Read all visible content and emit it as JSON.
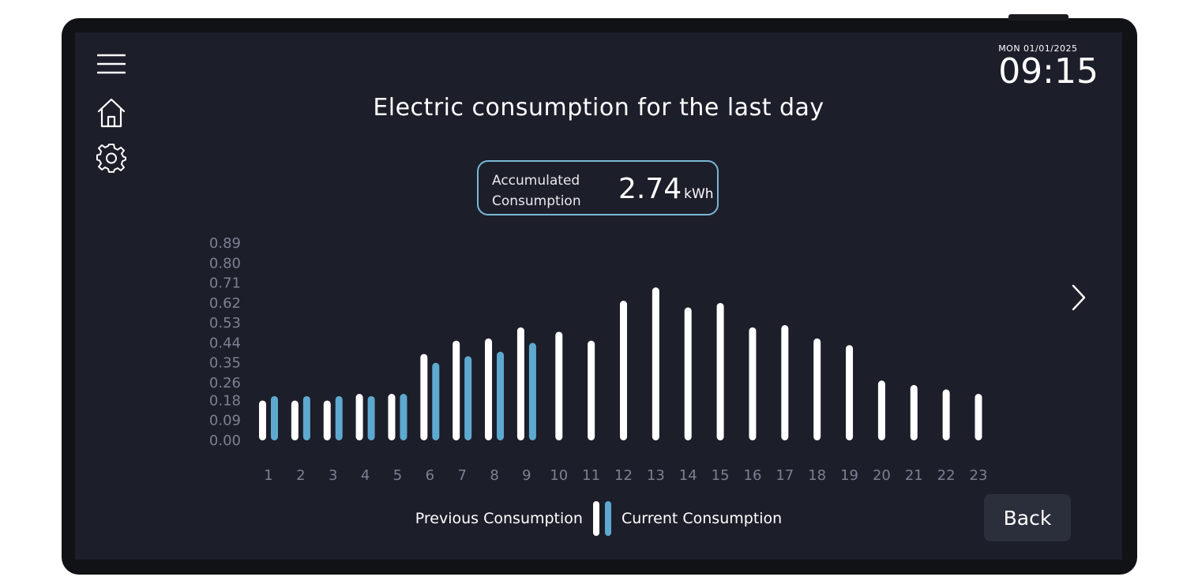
{
  "header": {
    "date": "MON 01/01/2025",
    "time": "09:15",
    "title": "Electric consumption for the last day"
  },
  "nav": {
    "menu_icon": "hamburger-menu-icon",
    "home_icon": "home-icon",
    "settings_icon": "gear-icon",
    "next_icon": "chevron-right-icon"
  },
  "summary": {
    "label": "Accumulated Consumption",
    "value": "2.74",
    "unit": "kWh"
  },
  "colors": {
    "background": "#1c1e2a",
    "previous": "#ffffff",
    "current": "#5ea9cf",
    "accent_border": "#7ab8d4"
  },
  "chart_data": {
    "type": "bar",
    "title": "Electric consumption for the last day",
    "xlabel": "",
    "ylabel": "",
    "ylim": [
      0,
      0.89
    ],
    "yticks": [
      "0.00",
      "0.09",
      "0.18",
      "0.26",
      "0.35",
      "0.44",
      "0.53",
      "0.62",
      "0.71",
      "0.80",
      "0.89"
    ],
    "categories": [
      "1",
      "2",
      "3",
      "4",
      "5",
      "6",
      "7",
      "8",
      "9",
      "10",
      "11",
      "12",
      "13",
      "14",
      "15",
      "16",
      "17",
      "18",
      "19",
      "20",
      "21",
      "22",
      "23"
    ],
    "series": [
      {
        "name": "Previous Consumption",
        "color": "#ffffff",
        "values": [
          0.18,
          0.18,
          0.18,
          0.21,
          0.21,
          0.39,
          0.45,
          0.46,
          0.51,
          0.49,
          0.45,
          0.63,
          0.69,
          0.6,
          0.62,
          0.51,
          0.52,
          0.46,
          0.43,
          0.27,
          0.25,
          0.23,
          0.21
        ]
      },
      {
        "name": "Current Consumption",
        "color": "#5ea9cf",
        "values": [
          0.2,
          0.2,
          0.2,
          0.2,
          0.21,
          0.35,
          0.38,
          0.4,
          0.44,
          null,
          null,
          null,
          null,
          null,
          null,
          null,
          null,
          null,
          null,
          null,
          null,
          null,
          null
        ]
      }
    ],
    "legend": [
      "Previous Consumption",
      "Current Consumption"
    ]
  },
  "legend": {
    "previous_label": "Previous Consumption",
    "current_label": "Current Consumption"
  },
  "actions": {
    "back_label": "Back"
  }
}
